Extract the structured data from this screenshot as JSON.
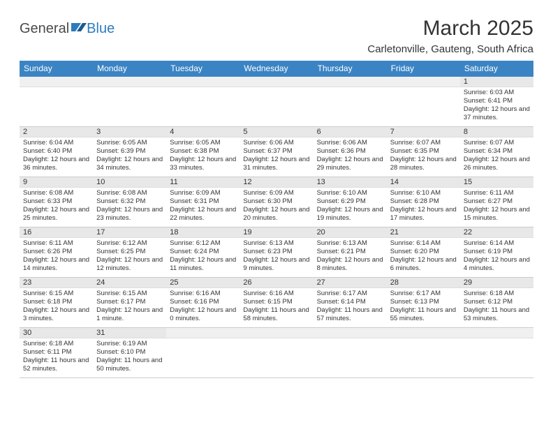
{
  "logo": {
    "text1": "General",
    "text2": "Blue"
  },
  "title": "March 2025",
  "subtitle": "Carletonville, Gauteng, South Africa",
  "colors": {
    "header_bg": "#3b84c4",
    "header_text": "#ffffff",
    "daynum_bg": "#e8e8e8",
    "cell_border_top": "#3b84c4",
    "text": "#333333",
    "logo_blue": "#2b7bbf"
  },
  "fonts": {
    "title_size": 30,
    "subtitle_size": 15,
    "th_size": 12,
    "daynum_size": 11,
    "body_size": 9.5
  },
  "day_headers": [
    "Sunday",
    "Monday",
    "Tuesday",
    "Wednesday",
    "Thursday",
    "Friday",
    "Saturday"
  ],
  "weeks": [
    [
      null,
      null,
      null,
      null,
      null,
      null,
      {
        "n": "1",
        "sr": "Sunrise: 6:03 AM",
        "ss": "Sunset: 6:41 PM",
        "dl": "Daylight: 12 hours and 37 minutes."
      }
    ],
    [
      {
        "n": "2",
        "sr": "Sunrise: 6:04 AM",
        "ss": "Sunset: 6:40 PM",
        "dl": "Daylight: 12 hours and 36 minutes."
      },
      {
        "n": "3",
        "sr": "Sunrise: 6:05 AM",
        "ss": "Sunset: 6:39 PM",
        "dl": "Daylight: 12 hours and 34 minutes."
      },
      {
        "n": "4",
        "sr": "Sunrise: 6:05 AM",
        "ss": "Sunset: 6:38 PM",
        "dl": "Daylight: 12 hours and 33 minutes."
      },
      {
        "n": "5",
        "sr": "Sunrise: 6:06 AM",
        "ss": "Sunset: 6:37 PM",
        "dl": "Daylight: 12 hours and 31 minutes."
      },
      {
        "n": "6",
        "sr": "Sunrise: 6:06 AM",
        "ss": "Sunset: 6:36 PM",
        "dl": "Daylight: 12 hours and 29 minutes."
      },
      {
        "n": "7",
        "sr": "Sunrise: 6:07 AM",
        "ss": "Sunset: 6:35 PM",
        "dl": "Daylight: 12 hours and 28 minutes."
      },
      {
        "n": "8",
        "sr": "Sunrise: 6:07 AM",
        "ss": "Sunset: 6:34 PM",
        "dl": "Daylight: 12 hours and 26 minutes."
      }
    ],
    [
      {
        "n": "9",
        "sr": "Sunrise: 6:08 AM",
        "ss": "Sunset: 6:33 PM",
        "dl": "Daylight: 12 hours and 25 minutes."
      },
      {
        "n": "10",
        "sr": "Sunrise: 6:08 AM",
        "ss": "Sunset: 6:32 PM",
        "dl": "Daylight: 12 hours and 23 minutes."
      },
      {
        "n": "11",
        "sr": "Sunrise: 6:09 AM",
        "ss": "Sunset: 6:31 PM",
        "dl": "Daylight: 12 hours and 22 minutes."
      },
      {
        "n": "12",
        "sr": "Sunrise: 6:09 AM",
        "ss": "Sunset: 6:30 PM",
        "dl": "Daylight: 12 hours and 20 minutes."
      },
      {
        "n": "13",
        "sr": "Sunrise: 6:10 AM",
        "ss": "Sunset: 6:29 PM",
        "dl": "Daylight: 12 hours and 19 minutes."
      },
      {
        "n": "14",
        "sr": "Sunrise: 6:10 AM",
        "ss": "Sunset: 6:28 PM",
        "dl": "Daylight: 12 hours and 17 minutes."
      },
      {
        "n": "15",
        "sr": "Sunrise: 6:11 AM",
        "ss": "Sunset: 6:27 PM",
        "dl": "Daylight: 12 hours and 15 minutes."
      }
    ],
    [
      {
        "n": "16",
        "sr": "Sunrise: 6:11 AM",
        "ss": "Sunset: 6:26 PM",
        "dl": "Daylight: 12 hours and 14 minutes."
      },
      {
        "n": "17",
        "sr": "Sunrise: 6:12 AM",
        "ss": "Sunset: 6:25 PM",
        "dl": "Daylight: 12 hours and 12 minutes."
      },
      {
        "n": "18",
        "sr": "Sunrise: 6:12 AM",
        "ss": "Sunset: 6:24 PM",
        "dl": "Daylight: 12 hours and 11 minutes."
      },
      {
        "n": "19",
        "sr": "Sunrise: 6:13 AM",
        "ss": "Sunset: 6:23 PM",
        "dl": "Daylight: 12 hours and 9 minutes."
      },
      {
        "n": "20",
        "sr": "Sunrise: 6:13 AM",
        "ss": "Sunset: 6:21 PM",
        "dl": "Daylight: 12 hours and 8 minutes."
      },
      {
        "n": "21",
        "sr": "Sunrise: 6:14 AM",
        "ss": "Sunset: 6:20 PM",
        "dl": "Daylight: 12 hours and 6 minutes."
      },
      {
        "n": "22",
        "sr": "Sunrise: 6:14 AM",
        "ss": "Sunset: 6:19 PM",
        "dl": "Daylight: 12 hours and 4 minutes."
      }
    ],
    [
      {
        "n": "23",
        "sr": "Sunrise: 6:15 AM",
        "ss": "Sunset: 6:18 PM",
        "dl": "Daylight: 12 hours and 3 minutes."
      },
      {
        "n": "24",
        "sr": "Sunrise: 6:15 AM",
        "ss": "Sunset: 6:17 PM",
        "dl": "Daylight: 12 hours and 1 minute."
      },
      {
        "n": "25",
        "sr": "Sunrise: 6:16 AM",
        "ss": "Sunset: 6:16 PM",
        "dl": "Daylight: 12 hours and 0 minutes."
      },
      {
        "n": "26",
        "sr": "Sunrise: 6:16 AM",
        "ss": "Sunset: 6:15 PM",
        "dl": "Daylight: 11 hours and 58 minutes."
      },
      {
        "n": "27",
        "sr": "Sunrise: 6:17 AM",
        "ss": "Sunset: 6:14 PM",
        "dl": "Daylight: 11 hours and 57 minutes."
      },
      {
        "n": "28",
        "sr": "Sunrise: 6:17 AM",
        "ss": "Sunset: 6:13 PM",
        "dl": "Daylight: 11 hours and 55 minutes."
      },
      {
        "n": "29",
        "sr": "Sunrise: 6:18 AM",
        "ss": "Sunset: 6:12 PM",
        "dl": "Daylight: 11 hours and 53 minutes."
      }
    ],
    [
      {
        "n": "30",
        "sr": "Sunrise: 6:18 AM",
        "ss": "Sunset: 6:11 PM",
        "dl": "Daylight: 11 hours and 52 minutes."
      },
      {
        "n": "31",
        "sr": "Sunrise: 6:19 AM",
        "ss": "Sunset: 6:10 PM",
        "dl": "Daylight: 11 hours and 50 minutes."
      },
      null,
      null,
      null,
      null,
      null
    ]
  ]
}
